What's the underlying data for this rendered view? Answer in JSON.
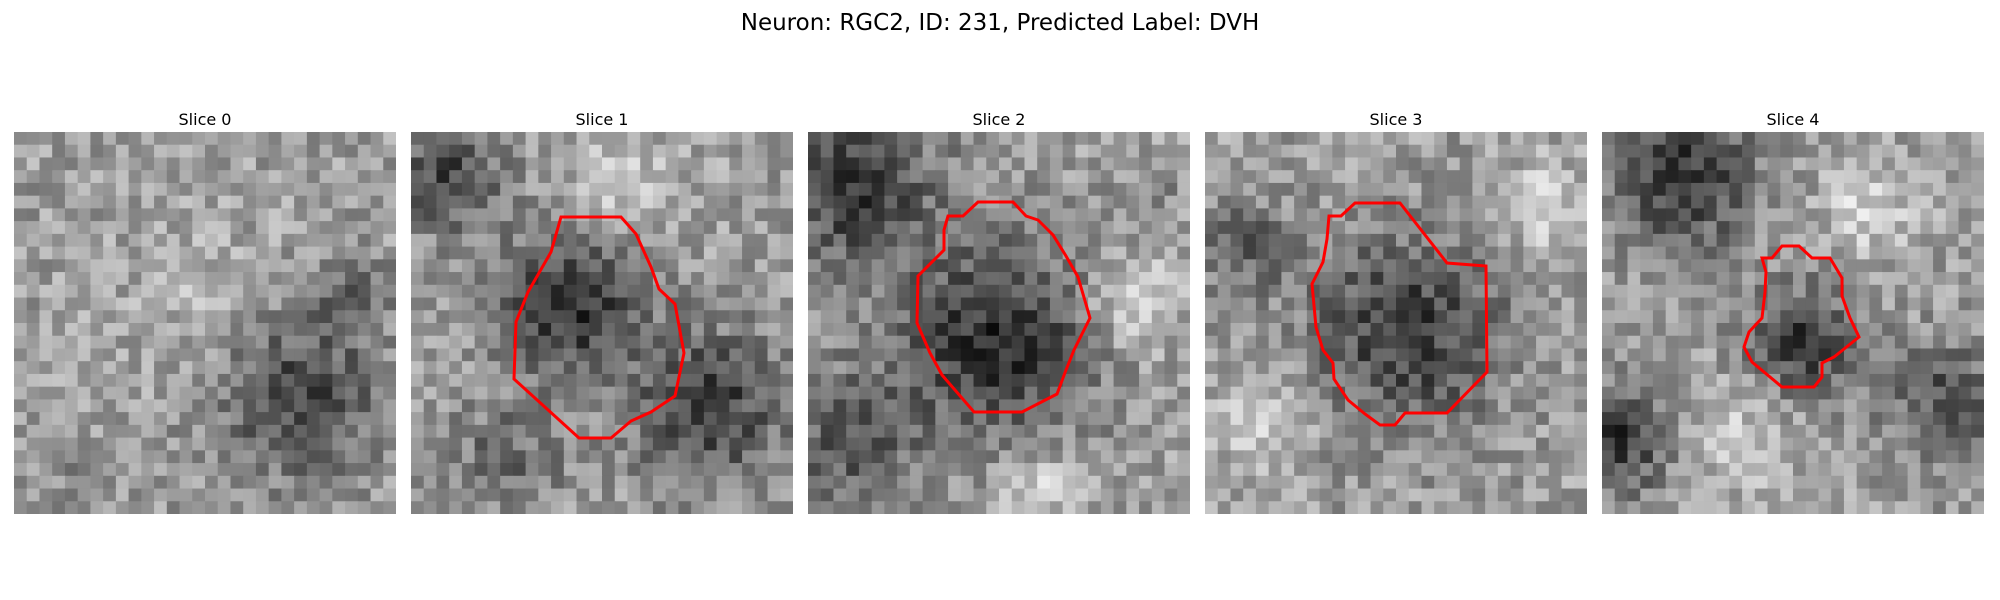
{
  "figure": {
    "title": "Neuron: RGC2, ID: 231, Predicted Label: DVH"
  },
  "panels": [
    {
      "title": "Slice 0",
      "seed": 11,
      "has_contour": false,
      "contour_color": "#ff0000"
    },
    {
      "title": "Slice 1",
      "seed": 23,
      "has_contour": true,
      "contour_color": "#ff0000"
    },
    {
      "title": "Slice 2",
      "seed": 37,
      "has_contour": true,
      "contour_color": "#ff0000"
    },
    {
      "title": "Slice 3",
      "seed": 41,
      "has_contour": true,
      "contour_color": "#ff0000"
    },
    {
      "title": "Slice 4",
      "seed": 53,
      "has_contour": true,
      "contour_color": "#ff0000"
    }
  ]
}
